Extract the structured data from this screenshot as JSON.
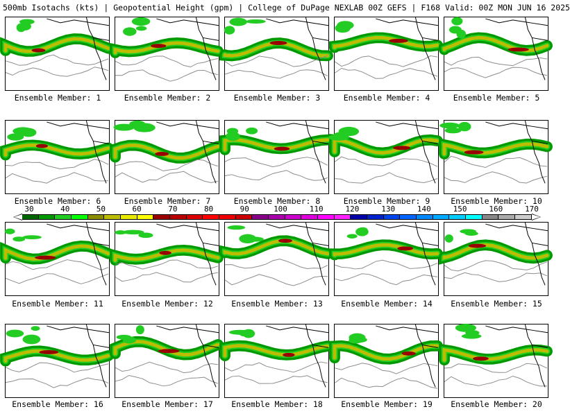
{
  "header": {
    "title": "500mb Isotachs (kts) | Geopotential Height (gpm) | College of DuPage NEXLAB  00Z GEFS | F168 Valid: 00Z MON JUN 16 2025"
  },
  "colors": {
    "map_border": "#000000",
    "height_contour": "#8c8c8c",
    "land_outline": "#000000"
  },
  "colorbar": {
    "ticks": [
      "30",
      "40",
      "50",
      "60",
      "70",
      "80",
      "90",
      "100",
      "110",
      "120",
      "130",
      "140",
      "150",
      "160",
      "170"
    ],
    "colors": [
      "#006600",
      "#009900",
      "#22cc22",
      "#00ff00",
      "#8c8c00",
      "#bcbc00",
      "#e8e800",
      "#ffff00",
      "#990000",
      "#bb0000",
      "#dd0000",
      "#ff0000",
      "#ee0000",
      "#cc0000",
      "#880088",
      "#aa00aa",
      "#cc00cc",
      "#dd00dd",
      "#ff00ff",
      "#ff22ff",
      "#0000aa",
      "#0022cc",
      "#0044ee",
      "#0066ff",
      "#0088ff",
      "#00aaff",
      "#00ccff",
      "#00ffff",
      "#888888",
      "#aaaaaa",
      "#cccccc"
    ]
  },
  "panels": [
    {
      "label": "Ensemble Member: 1"
    },
    {
      "label": "Ensemble Member: 2"
    },
    {
      "label": "Ensemble Member: 3"
    },
    {
      "label": "Ensemble Member: 4"
    },
    {
      "label": "Ensemble Member: 5"
    },
    {
      "label": "Ensemble Member: 6"
    },
    {
      "label": "Ensemble Member: 7"
    },
    {
      "label": "Ensemble Member: 8"
    },
    {
      "label": "Ensemble Member: 9"
    },
    {
      "label": "Ensemble Member: 10"
    },
    {
      "label": "Ensemble Member: 11"
    },
    {
      "label": "Ensemble Member: 12"
    },
    {
      "label": "Ensemble Member: 13"
    },
    {
      "label": "Ensemble Member: 14"
    },
    {
      "label": "Ensemble Member: 15"
    },
    {
      "label": "Ensemble Member: 16"
    },
    {
      "label": "Ensemble Member: 17"
    },
    {
      "label": "Ensemble Member: 18"
    },
    {
      "label": "Ensemble Member: 19"
    },
    {
      "label": "Ensemble Member: 20"
    }
  ]
}
